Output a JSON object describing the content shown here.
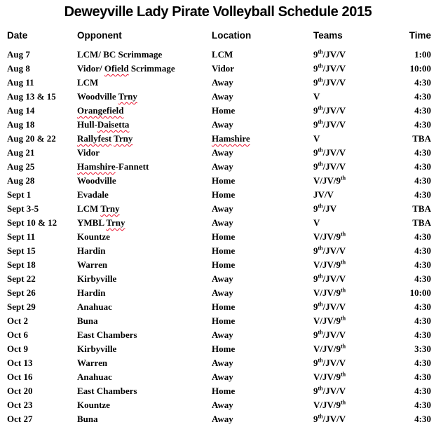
{
  "title": "Deweyville Lady Pirate Volleyball Schedule 2015",
  "colors": {
    "text": "#000000",
    "misspell_underline": "#e8112d"
  },
  "columns": {
    "date": "Date",
    "opponent": "Opponent",
    "location": "Location",
    "teams": "Teams",
    "time": "Time"
  },
  "rows": [
    {
      "date": "Aug 7",
      "opponent": [
        {
          "text": "LCM/ BC Scrimmage"
        }
      ],
      "location": [
        {
          "text": "LCM"
        }
      ],
      "teams": "9th/JV/V",
      "time": "1:00"
    },
    {
      "date": "Aug 8",
      "opponent": [
        {
          "text": "Vidor/ "
        },
        {
          "text": "Ofield",
          "misspelled": true
        },
        {
          "text": " Scrimmage"
        }
      ],
      "location": [
        {
          "text": "Vidor"
        }
      ],
      "teams": "9th/JV/V",
      "time": "10:00"
    },
    {
      "date": "Aug 11",
      "opponent": [
        {
          "text": "LCM"
        }
      ],
      "location": [
        {
          "text": "Away"
        }
      ],
      "teams": "9th/JV/V",
      "time": "4:30"
    },
    {
      "date": "Aug 13 & 15",
      "opponent": [
        {
          "text": "Woodville "
        },
        {
          "text": "Trny",
          "misspelled": true
        }
      ],
      "location": [
        {
          "text": "Away"
        }
      ],
      "teams": "V",
      "time": "4:30"
    },
    {
      "date": "Aug 14",
      "opponent": [
        {
          "text": "Orangefield",
          "misspelled": true
        }
      ],
      "location": [
        {
          "text": "Home"
        }
      ],
      "teams": "9th/JV/V",
      "time": "4:30"
    },
    {
      "date": "Aug 18",
      "opponent": [
        {
          "text": "Hull-"
        },
        {
          "text": "Daisetta",
          "misspelled": true
        }
      ],
      "location": [
        {
          "text": "Away"
        }
      ],
      "teams": "9th/JV/V",
      "time": "4:30"
    },
    {
      "date": "Aug 20 & 22",
      "opponent": [
        {
          "text": "Rallyfest",
          "misspelled": true
        },
        {
          "text": " "
        },
        {
          "text": "Trny",
          "misspelled": true
        }
      ],
      "location": [
        {
          "text": "Hamshire",
          "misspelled": true
        }
      ],
      "teams": "V",
      "time": "TBA"
    },
    {
      "date": "Aug 21",
      "opponent": [
        {
          "text": "Vidor"
        }
      ],
      "location": [
        {
          "text": "Away"
        }
      ],
      "teams": "9th/JV/V",
      "time": "4:30"
    },
    {
      "date": "Aug 25",
      "opponent": [
        {
          "text": "Hamshire",
          "misspelled": true
        },
        {
          "text": "-Fannett"
        }
      ],
      "location": [
        {
          "text": "Away"
        }
      ],
      "teams": "9th/JV/V",
      "time": "4:30"
    },
    {
      "date": "Aug 28",
      "opponent": [
        {
          "text": "Woodville"
        }
      ],
      "location": [
        {
          "text": "Home"
        }
      ],
      "teams": "V/JV/9th",
      "time": "4:30"
    },
    {
      "date": "Sept 1",
      "opponent": [
        {
          "text": "Evadale"
        }
      ],
      "location": [
        {
          "text": "Home"
        }
      ],
      "teams": "JV/V",
      "time": "4:30"
    },
    {
      "date": "Sept 3-5",
      "opponent": [
        {
          "text": "LCM "
        },
        {
          "text": "Trny",
          "misspelled": true
        }
      ],
      "location": [
        {
          "text": "Away"
        }
      ],
      "teams": "9th/JV",
      "time": "TBA"
    },
    {
      "date": "Sept 10 & 12",
      "opponent": [
        {
          "text": "YMBL "
        },
        {
          "text": "Trny",
          "misspelled": true
        }
      ],
      "location": [
        {
          "text": "Away"
        }
      ],
      "teams": "V",
      "time": "TBA"
    },
    {
      "date": "Sept 11",
      "opponent": [
        {
          "text": "Kountze"
        }
      ],
      "location": [
        {
          "text": "Home"
        }
      ],
      "teams": "V/JV/9th",
      "time": "4:30"
    },
    {
      "date": "Sept 15",
      "opponent": [
        {
          "text": "Hardin"
        }
      ],
      "location": [
        {
          "text": "Home"
        }
      ],
      "teams": "9th/JV/V",
      "time": "4:30"
    },
    {
      "date": "Sept 18",
      "opponent": [
        {
          "text": "Warren"
        }
      ],
      "location": [
        {
          "text": "Home"
        }
      ],
      "teams": "V/JV/9th",
      "time": "4:30"
    },
    {
      "date": "Sept 22",
      "opponent": [
        {
          "text": "Kirbyville"
        }
      ],
      "location": [
        {
          "text": "Away"
        }
      ],
      "teams": "9th/JV/V",
      "time": "4:30"
    },
    {
      "date": "Sept 26",
      "opponent": [
        {
          "text": "Hardin"
        }
      ],
      "location": [
        {
          "text": "Away"
        }
      ],
      "teams": "V/JV/9th",
      "time": "10:00"
    },
    {
      "date": "Sept 29",
      "opponent": [
        {
          "text": "Anahuac"
        }
      ],
      "location": [
        {
          "text": "Home"
        }
      ],
      "teams": "9th/JV/V",
      "time": "4:30"
    },
    {
      "date": "Oct 2",
      "opponent": [
        {
          "text": "Buna"
        }
      ],
      "location": [
        {
          "text": "Home"
        }
      ],
      "teams": "V/JV/9th",
      "time": "4:30"
    },
    {
      "date": "Oct 6",
      "opponent": [
        {
          "text": "East Chambers"
        }
      ],
      "location": [
        {
          "text": "Away"
        }
      ],
      "teams": "9th/JV/V",
      "time": "4:30"
    },
    {
      "date": "Oct 9",
      "opponent": [
        {
          "text": "Kirbyville"
        }
      ],
      "location": [
        {
          "text": "Home"
        }
      ],
      "teams": "V/JV/9th",
      "time": "3:30"
    },
    {
      "date": "Oct 13",
      "opponent": [
        {
          "text": "Warren"
        }
      ],
      "location": [
        {
          "text": "Away"
        }
      ],
      "teams": "9th/JV/V",
      "time": "4:30"
    },
    {
      "date": "Oct 16",
      "opponent": [
        {
          "text": "Anahuac"
        }
      ],
      "location": [
        {
          "text": "Away"
        }
      ],
      "teams": "V/JV/9th",
      "time": "4:30"
    },
    {
      "date": "Oct 20",
      "opponent": [
        {
          "text": "East Chambers"
        }
      ],
      "location": [
        {
          "text": "Home"
        }
      ],
      "teams": "9th/JV/V",
      "time": "4:30"
    },
    {
      "date": "Oct 23",
      "opponent": [
        {
          "text": "Kountze"
        }
      ],
      "location": [
        {
          "text": "Away"
        }
      ],
      "teams": "V/JV/9th",
      "time": "4:30"
    },
    {
      "date": "Oct 27",
      "opponent": [
        {
          "text": "Buna"
        }
      ],
      "location": [
        {
          "text": "Away"
        }
      ],
      "teams": "9th/JV/V",
      "time": "4:30"
    }
  ]
}
